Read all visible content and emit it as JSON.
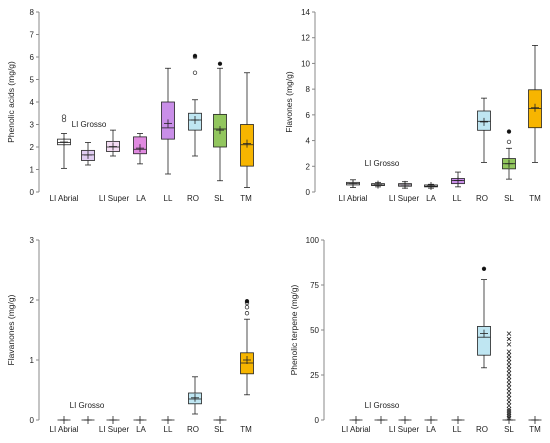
{
  "chart_data": [
    {
      "type": "boxplot",
      "ylabel": "Phenolic acids (mg/g)",
      "ylim": [
        0,
        8
      ],
      "yticks": [
        0,
        1,
        2,
        3,
        4,
        5,
        6,
        7,
        8
      ],
      "categories": [
        "LI Abrial",
        "LI Grosso",
        "LI Super",
        "LA",
        "LL",
        "RO",
        "SL",
        "TM"
      ],
      "colors": [
        "#ffffff",
        "#e0cdf2",
        "#f3dcf3",
        "#e08ae0",
        "#c98ee8",
        "#bfe6f2",
        "#92c65e",
        "#f7b500"
      ],
      "boxes": [
        {
          "min": 1.05,
          "q1": 2.1,
          "median": 2.2,
          "q3": 2.35,
          "max": 2.6,
          "mean": 2.22,
          "outliers": [
            3.2,
            3.35
          ]
        },
        {
          "min": 1.2,
          "q1": 1.4,
          "median": 1.65,
          "q3": 1.85,
          "max": 2.2,
          "mean": 1.65,
          "outliers": []
        },
        {
          "min": 1.6,
          "q1": 1.8,
          "median": 2.0,
          "q3": 2.25,
          "max": 2.75,
          "mean": 2.02,
          "outliers": []
        },
        {
          "min": 1.25,
          "q1": 1.7,
          "median": 1.9,
          "q3": 2.45,
          "max": 2.6,
          "mean": 1.95,
          "outliers": []
        },
        {
          "min": 0.8,
          "q1": 2.35,
          "median": 2.85,
          "q3": 4.0,
          "max": 5.5,
          "mean": 3.05,
          "outliers": []
        },
        {
          "min": 1.6,
          "q1": 2.75,
          "median": 3.2,
          "q3": 3.5,
          "max": 4.1,
          "mean": 3.2,
          "outliers": [
            5.3,
            6.0,
            6.05
          ]
        },
        {
          "min": 0.5,
          "q1": 2.0,
          "median": 2.8,
          "q3": 3.45,
          "max": 5.5,
          "mean": 2.75,
          "outliers": [
            5.7
          ]
        },
        {
          "min": 0.2,
          "q1": 1.15,
          "median": 2.1,
          "q3": 3.0,
          "max": 5.3,
          "mean": 2.15,
          "outliers": []
        }
      ]
    },
    {
      "type": "boxplot",
      "ylabel": "Flavones (mg/g)",
      "ylim": [
        0,
        14
      ],
      "yticks": [
        0,
        2,
        4,
        6,
        8,
        10,
        12,
        14
      ],
      "categories": [
        "LI Abrial",
        "LI Grosso",
        "LI Super",
        "LA",
        "LL",
        "RO",
        "SL",
        "TM"
      ],
      "colors": [
        "#ffffff",
        "#ffffff",
        "#f3e8f8",
        "#ffffff",
        "#c98ee8",
        "#bfe6f2",
        "#92c65e",
        "#f7b500"
      ],
      "boxes": [
        {
          "min": 0.35,
          "q1": 0.55,
          "median": 0.65,
          "q3": 0.75,
          "max": 0.95,
          "mean": 0.65,
          "outliers": []
        },
        {
          "min": 0.4,
          "q1": 0.5,
          "median": 0.55,
          "q3": 0.65,
          "max": 0.75,
          "mean": 0.57,
          "outliers": []
        },
        {
          "min": 0.3,
          "q1": 0.45,
          "median": 0.55,
          "q3": 0.65,
          "max": 0.8,
          "mean": 0.55,
          "outliers": []
        },
        {
          "min": 0.3,
          "q1": 0.4,
          "median": 0.45,
          "q3": 0.55,
          "max": 0.6,
          "mean": 0.47,
          "outliers": []
        },
        {
          "min": 0.4,
          "q1": 0.65,
          "median": 0.9,
          "q3": 1.05,
          "max": 1.55,
          "mean": 0.9,
          "outliers": []
        },
        {
          "min": 2.3,
          "q1": 4.8,
          "median": 5.5,
          "q3": 6.3,
          "max": 7.3,
          "mean": 5.45,
          "outliers": []
        },
        {
          "min": 1.0,
          "q1": 1.8,
          "median": 2.2,
          "q3": 2.6,
          "max": 3.4,
          "mean": 2.2,
          "outliers": [
            3.9,
            4.7
          ]
        },
        {
          "min": 2.3,
          "q1": 5.0,
          "median": 6.5,
          "q3": 7.95,
          "max": 11.4,
          "mean": 6.55,
          "outliers": []
        }
      ]
    },
    {
      "type": "boxplot",
      "ylabel": "Flavanones (mg/g)",
      "ylim": [
        0,
        3
      ],
      "yticks": [
        0,
        1,
        2,
        3
      ],
      "categories": [
        "LI Abrial",
        "LI Grosso",
        "LI Super",
        "LA",
        "LL",
        "RO",
        "SL",
        "TM"
      ],
      "colors": [
        "#ffffff",
        "#ffffff",
        "#ffffff",
        "#ffffff",
        "#ffffff",
        "#bfe6f2",
        "#ffffff",
        "#f7b500"
      ],
      "boxes": [
        {
          "min": 0,
          "q1": 0,
          "median": 0,
          "q3": 0,
          "max": 0,
          "mean": 0,
          "outliers": []
        },
        {
          "min": 0,
          "q1": 0,
          "median": 0,
          "q3": 0,
          "max": 0,
          "mean": 0,
          "outliers": []
        },
        {
          "min": 0,
          "q1": 0,
          "median": 0,
          "q3": 0,
          "max": 0,
          "mean": 0,
          "outliers": []
        },
        {
          "min": 0,
          "q1": 0,
          "median": 0,
          "q3": 0,
          "max": 0,
          "mean": 0,
          "outliers": []
        },
        {
          "min": 0,
          "q1": 0,
          "median": 0,
          "q3": 0,
          "max": 0,
          "mean": 0,
          "outliers": []
        },
        {
          "min": 0.1,
          "q1": 0.27,
          "median": 0.35,
          "q3": 0.45,
          "max": 0.72,
          "mean": 0.37,
          "outliers": []
        },
        {
          "min": 0,
          "q1": 0,
          "median": 0,
          "q3": 0,
          "max": 0,
          "mean": 0,
          "outliers": []
        },
        {
          "min": 0.42,
          "q1": 0.77,
          "median": 0.95,
          "q3": 1.12,
          "max": 1.68,
          "mean": 1.0,
          "outliers": [
            1.78,
            1.88,
            1.95,
            1.98
          ]
        }
      ]
    },
    {
      "type": "boxplot",
      "ylabel": "Phenolic terpene (mg/g)",
      "ylim": [
        0,
        100
      ],
      "yticks": [
        0,
        25,
        50,
        75,
        100
      ],
      "categories": [
        "LI Abrial",
        "LI Grosso",
        "LI Super",
        "LA",
        "LL",
        "RO",
        "SL",
        "TM"
      ],
      "colors": [
        "#ffffff",
        "#ffffff",
        "#ffffff",
        "#ffffff",
        "#ffffff",
        "#bfe6f2",
        "#ffffff",
        "#ffffff"
      ],
      "boxes": [
        {
          "min": 0,
          "q1": 0,
          "median": 0,
          "q3": 0,
          "max": 0,
          "mean": 0,
          "outliers": []
        },
        {
          "min": 0,
          "q1": 0,
          "median": 0,
          "q3": 0,
          "max": 0,
          "mean": 0,
          "outliers": []
        },
        {
          "min": 0,
          "q1": 0,
          "median": 0,
          "q3": 0,
          "max": 0,
          "mean": 0,
          "outliers": []
        },
        {
          "min": 0,
          "q1": 0,
          "median": 0,
          "q3": 0,
          "max": 0,
          "mean": 0,
          "outliers": []
        },
        {
          "min": 0,
          "q1": 0,
          "median": 0,
          "q3": 0,
          "max": 0,
          "mean": 0,
          "outliers": []
        },
        {
          "min": 29,
          "q1": 36,
          "median": 46,
          "q3": 52,
          "max": 78,
          "mean": 48,
          "outliers": [
            84
          ]
        },
        {
          "min": 0,
          "q1": 0,
          "median": 0,
          "q3": 0,
          "max": 0,
          "mean": 0,
          "outliers": [
            1,
            2,
            3,
            4,
            5,
            6,
            8,
            10,
            12,
            14,
            16,
            18,
            20,
            22,
            24,
            26,
            28,
            30,
            32,
            34,
            36,
            38,
            42,
            45,
            48
          ]
        },
        {
          "min": 0,
          "q1": 0,
          "median": 0,
          "q3": 0,
          "max": 0,
          "mean": 0,
          "outliers": []
        }
      ]
    }
  ]
}
